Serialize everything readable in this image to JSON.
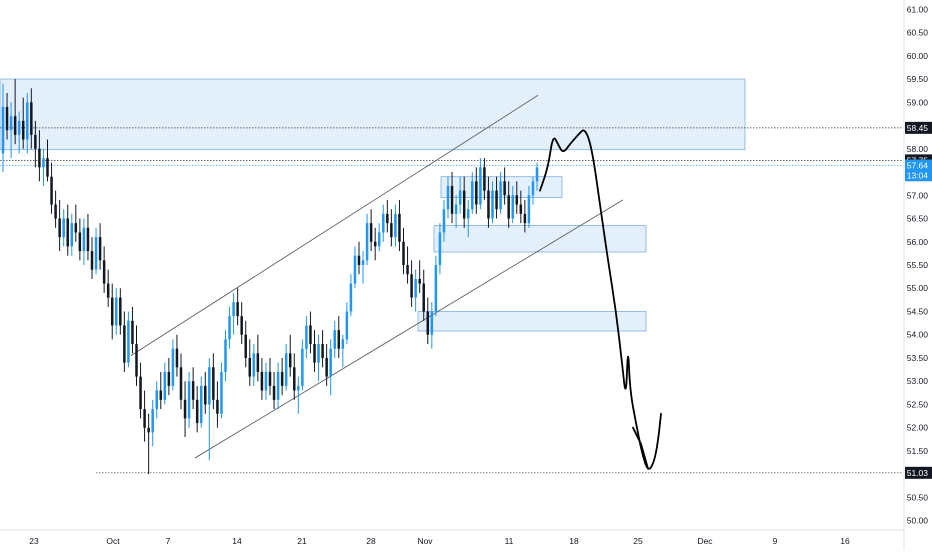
{
  "chart_data": {
    "type": "candlestick",
    "x_ticks": [
      "23",
      "Oct",
      "7",
      "14",
      "21",
      "28",
      "Nov",
      "11",
      "18",
      "25",
      "Dec",
      "9",
      "16"
    ],
    "y_ticks": [
      "61.00",
      "60.50",
      "60.00",
      "59.50",
      "59.00",
      "58.50",
      "58.00",
      "57.50",
      "57.00",
      "56.50",
      "56.00",
      "55.50",
      "55.00",
      "54.50",
      "54.00",
      "53.50",
      "53.00",
      "52.50",
      "52.00",
      "51.50",
      "51.00",
      "50.50",
      "50.00"
    ],
    "ylim": [
      49.8,
      61.2
    ],
    "price_labels": [
      {
        "text": "58.45",
        "value": 58.45,
        "style": "dark"
      },
      {
        "text": "57.75",
        "value": 57.75,
        "style": "dark"
      },
      {
        "text": "57.64",
        "value": 57.64,
        "style": "blue"
      },
      {
        "text": "13:04",
        "value": 57.43,
        "style": "blue"
      },
      {
        "text": "51.03",
        "value": 51.03,
        "style": "dark"
      }
    ],
    "horizontal_levels": [
      58.45,
      57.75,
      57.64,
      51.03
    ],
    "zones": [
      {
        "name": "supply-zone-top",
        "y1": 59.5,
        "y2": 57.98
      },
      {
        "name": "zone-recent-high",
        "y1": 57.4,
        "y2": 56.95
      },
      {
        "name": "zone-mid",
        "y1": 56.35,
        "y2": 55.78
      },
      {
        "name": "zone-low",
        "y1": 54.5,
        "y2": 54.08
      }
    ],
    "channel": {
      "upper": [
        [
          131,
          53.55
        ],
        [
          538,
          59.15
        ]
      ],
      "lower": [
        [
          195,
          51.35
        ],
        [
          623,
          56.9
        ]
      ]
    },
    "candles": [
      {
        "o": 57.9,
        "h": 59.4,
        "l": 57.5,
        "c": 58.9
      },
      {
        "o": 58.9,
        "h": 59.2,
        "l": 58.2,
        "c": 58.4
      },
      {
        "o": 58.4,
        "h": 59.0,
        "l": 57.8,
        "c": 58.7
      },
      {
        "o": 58.7,
        "h": 59.5,
        "l": 58.1,
        "c": 58.3
      },
      {
        "o": 58.3,
        "h": 58.8,
        "l": 57.9,
        "c": 58.6
      },
      {
        "o": 58.6,
        "h": 59.1,
        "l": 58.0,
        "c": 58.2
      },
      {
        "o": 58.2,
        "h": 59.2,
        "l": 57.9,
        "c": 59.0
      },
      {
        "o": 59.0,
        "h": 59.3,
        "l": 58.0,
        "c": 58.3
      },
      {
        "o": 58.3,
        "h": 58.6,
        "l": 57.6,
        "c": 58.0
      },
      {
        "o": 58.0,
        "h": 58.4,
        "l": 57.3,
        "c": 57.6
      },
      {
        "o": 57.6,
        "h": 58.0,
        "l": 57.2,
        "c": 57.8
      },
      {
        "o": 57.8,
        "h": 58.2,
        "l": 57.3,
        "c": 57.4
      },
      {
        "o": 57.4,
        "h": 57.7,
        "l": 56.6,
        "c": 56.8
      },
      {
        "o": 56.8,
        "h": 57.1,
        "l": 56.3,
        "c": 56.5
      },
      {
        "o": 56.5,
        "h": 56.9,
        "l": 55.8,
        "c": 56.1
      },
      {
        "o": 56.1,
        "h": 56.7,
        "l": 55.9,
        "c": 56.5
      },
      {
        "o": 56.5,
        "h": 56.8,
        "l": 55.7,
        "c": 55.9
      },
      {
        "o": 55.9,
        "h": 56.6,
        "l": 55.7,
        "c": 56.4
      },
      {
        "o": 56.4,
        "h": 56.8,
        "l": 56.0,
        "c": 56.2
      },
      {
        "o": 56.2,
        "h": 56.5,
        "l": 55.6,
        "c": 55.8
      },
      {
        "o": 55.8,
        "h": 56.5,
        "l": 55.5,
        "c": 56.3
      },
      {
        "o": 56.3,
        "h": 56.6,
        "l": 55.6,
        "c": 55.8
      },
      {
        "o": 55.8,
        "h": 56.1,
        "l": 55.2,
        "c": 55.4
      },
      {
        "o": 55.4,
        "h": 56.3,
        "l": 55.3,
        "c": 56.1
      },
      {
        "o": 56.1,
        "h": 56.4,
        "l": 55.4,
        "c": 55.6
      },
      {
        "o": 55.6,
        "h": 55.9,
        "l": 54.9,
        "c": 55.1
      },
      {
        "o": 55.1,
        "h": 55.4,
        "l": 54.6,
        "c": 54.8
      },
      {
        "o": 54.8,
        "h": 55.1,
        "l": 53.9,
        "c": 54.2
      },
      {
        "o": 54.2,
        "h": 55.0,
        "l": 54.0,
        "c": 54.8
      },
      {
        "o": 54.8,
        "h": 55.0,
        "l": 54.0,
        "c": 54.2
      },
      {
        "o": 54.2,
        "h": 54.5,
        "l": 53.2,
        "c": 53.4
      },
      {
        "o": 53.4,
        "h": 54.5,
        "l": 53.3,
        "c": 54.3
      },
      {
        "o": 54.3,
        "h": 54.6,
        "l": 53.6,
        "c": 53.8
      },
      {
        "o": 53.8,
        "h": 54.2,
        "l": 52.9,
        "c": 53.1
      },
      {
        "o": 53.1,
        "h": 53.4,
        "l": 52.2,
        "c": 52.4
      },
      {
        "o": 52.4,
        "h": 52.8,
        "l": 51.7,
        "c": 52.0
      },
      {
        "o": 52.0,
        "h": 52.3,
        "l": 51.0,
        "c": 51.9
      },
      {
        "o": 51.9,
        "h": 52.6,
        "l": 51.6,
        "c": 52.4
      },
      {
        "o": 52.4,
        "h": 53.0,
        "l": 52.2,
        "c": 52.8
      },
      {
        "o": 52.8,
        "h": 53.2,
        "l": 52.4,
        "c": 52.6
      },
      {
        "o": 52.6,
        "h": 53.4,
        "l": 52.5,
        "c": 53.2
      },
      {
        "o": 53.2,
        "h": 53.5,
        "l": 52.7,
        "c": 52.9
      },
      {
        "o": 52.9,
        "h": 53.9,
        "l": 52.8,
        "c": 53.7
      },
      {
        "o": 53.7,
        "h": 54.0,
        "l": 53.1,
        "c": 53.3
      },
      {
        "o": 53.3,
        "h": 53.6,
        "l": 52.4,
        "c": 52.6
      },
      {
        "o": 52.6,
        "h": 53.0,
        "l": 51.8,
        "c": 52.2
      },
      {
        "o": 52.2,
        "h": 53.2,
        "l": 52.0,
        "c": 53.0
      },
      {
        "o": 53.0,
        "h": 53.3,
        "l": 52.4,
        "c": 52.6
      },
      {
        "o": 52.6,
        "h": 52.9,
        "l": 51.9,
        "c": 52.1
      },
      {
        "o": 52.1,
        "h": 53.1,
        "l": 52.0,
        "c": 52.9
      },
      {
        "o": 52.9,
        "h": 53.2,
        "l": 52.3,
        "c": 52.5
      },
      {
        "o": 52.5,
        "h": 53.5,
        "l": 51.3,
        "c": 53.3
      },
      {
        "o": 53.3,
        "h": 53.6,
        "l": 52.4,
        "c": 52.6
      },
      {
        "o": 52.6,
        "h": 53.0,
        "l": 52.0,
        "c": 52.3
      },
      {
        "o": 52.3,
        "h": 53.4,
        "l": 52.2,
        "c": 53.2
      },
      {
        "o": 53.2,
        "h": 54.1,
        "l": 53.0,
        "c": 53.9
      },
      {
        "o": 53.9,
        "h": 54.6,
        "l": 53.7,
        "c": 54.4
      },
      {
        "o": 54.4,
        "h": 54.9,
        "l": 54.0,
        "c": 54.7
      },
      {
        "o": 54.7,
        "h": 55.0,
        "l": 54.2,
        "c": 54.4
      },
      {
        "o": 54.4,
        "h": 54.7,
        "l": 53.8,
        "c": 54.0
      },
      {
        "o": 54.0,
        "h": 54.3,
        "l": 53.3,
        "c": 53.5
      },
      {
        "o": 53.5,
        "h": 53.9,
        "l": 52.9,
        "c": 53.1
      },
      {
        "o": 53.1,
        "h": 53.8,
        "l": 52.9,
        "c": 53.6
      },
      {
        "o": 53.6,
        "h": 54.0,
        "l": 53.0,
        "c": 53.2
      },
      {
        "o": 53.2,
        "h": 53.5,
        "l": 52.6,
        "c": 52.8
      },
      {
        "o": 52.8,
        "h": 53.4,
        "l": 52.6,
        "c": 53.2
      },
      {
        "o": 53.2,
        "h": 53.5,
        "l": 52.7,
        "c": 52.9
      },
      {
        "o": 52.9,
        "h": 53.2,
        "l": 52.4,
        "c": 52.6
      },
      {
        "o": 52.6,
        "h": 53.4,
        "l": 52.4,
        "c": 53.2
      },
      {
        "o": 53.2,
        "h": 53.5,
        "l": 52.7,
        "c": 52.9
      },
      {
        "o": 52.9,
        "h": 53.8,
        "l": 52.8,
        "c": 53.6
      },
      {
        "o": 53.6,
        "h": 54.0,
        "l": 53.1,
        "c": 53.3
      },
      {
        "o": 53.3,
        "h": 53.6,
        "l": 52.6,
        "c": 52.8
      },
      {
        "o": 52.8,
        "h": 53.1,
        "l": 52.3,
        "c": 52.9
      },
      {
        "o": 52.9,
        "h": 53.9,
        "l": 52.8,
        "c": 53.7
      },
      {
        "o": 53.7,
        "h": 54.4,
        "l": 53.5,
        "c": 54.2
      },
      {
        "o": 54.2,
        "h": 54.5,
        "l": 53.6,
        "c": 53.8
      },
      {
        "o": 53.8,
        "h": 54.1,
        "l": 53.2,
        "c": 53.4
      },
      {
        "o": 53.4,
        "h": 54.0,
        "l": 53.0,
        "c": 53.8
      },
      {
        "o": 53.8,
        "h": 54.1,
        "l": 53.3,
        "c": 53.5
      },
      {
        "o": 53.5,
        "h": 53.8,
        "l": 52.9,
        "c": 53.1
      },
      {
        "o": 53.1,
        "h": 53.9,
        "l": 52.7,
        "c": 53.7
      },
      {
        "o": 53.7,
        "h": 54.3,
        "l": 53.5,
        "c": 54.1
      },
      {
        "o": 54.1,
        "h": 54.4,
        "l": 53.5,
        "c": 53.7
      },
      {
        "o": 53.7,
        "h": 54.0,
        "l": 53.3,
        "c": 53.9
      },
      {
        "o": 53.9,
        "h": 54.7,
        "l": 53.8,
        "c": 54.5
      },
      {
        "o": 54.5,
        "h": 55.3,
        "l": 54.4,
        "c": 55.1
      },
      {
        "o": 55.1,
        "h": 55.9,
        "l": 55.0,
        "c": 55.7
      },
      {
        "o": 55.7,
        "h": 56.0,
        "l": 55.3,
        "c": 55.5
      },
      {
        "o": 55.5,
        "h": 55.8,
        "l": 55.1,
        "c": 55.6
      },
      {
        "o": 55.6,
        "h": 56.6,
        "l": 55.5,
        "c": 56.4
      },
      {
        "o": 56.4,
        "h": 56.7,
        "l": 55.8,
        "c": 56.0
      },
      {
        "o": 56.0,
        "h": 56.3,
        "l": 55.6,
        "c": 55.9
      },
      {
        "o": 55.9,
        "h": 56.4,
        "l": 55.8,
        "c": 56.2
      },
      {
        "o": 56.2,
        "h": 56.8,
        "l": 56.0,
        "c": 56.6
      },
      {
        "o": 56.6,
        "h": 56.9,
        "l": 56.2,
        "c": 56.4
      },
      {
        "o": 56.4,
        "h": 56.7,
        "l": 55.9,
        "c": 56.1
      },
      {
        "o": 56.1,
        "h": 56.8,
        "l": 55.9,
        "c": 56.6
      },
      {
        "o": 56.6,
        "h": 56.9,
        "l": 55.8,
        "c": 56.0
      },
      {
        "o": 56.0,
        "h": 56.3,
        "l": 55.3,
        "c": 55.5
      },
      {
        "o": 55.5,
        "h": 55.9,
        "l": 55.1,
        "c": 55.3
      },
      {
        "o": 55.3,
        "h": 55.6,
        "l": 54.6,
        "c": 54.8
      },
      {
        "o": 54.8,
        "h": 55.4,
        "l": 54.5,
        "c": 55.2
      },
      {
        "o": 55.2,
        "h": 55.6,
        "l": 54.9,
        "c": 55.1
      },
      {
        "o": 55.1,
        "h": 55.4,
        "l": 54.3,
        "c": 54.5
      },
      {
        "o": 54.5,
        "h": 54.8,
        "l": 53.8,
        "c": 54.0
      },
      {
        "o": 54.0,
        "h": 54.7,
        "l": 53.7,
        "c": 54.5
      },
      {
        "o": 54.5,
        "h": 55.7,
        "l": 54.4,
        "c": 55.5
      },
      {
        "o": 55.5,
        "h": 56.4,
        "l": 55.3,
        "c": 56.2
      },
      {
        "o": 56.2,
        "h": 56.9,
        "l": 56.0,
        "c": 56.7
      },
      {
        "o": 56.7,
        "h": 57.4,
        "l": 56.5,
        "c": 57.2
      },
      {
        "o": 57.2,
        "h": 57.5,
        "l": 56.4,
        "c": 56.6
      },
      {
        "o": 56.6,
        "h": 57.0,
        "l": 56.3,
        "c": 56.8
      },
      {
        "o": 56.8,
        "h": 57.4,
        "l": 56.6,
        "c": 57.1
      },
      {
        "o": 57.1,
        "h": 57.4,
        "l": 56.3,
        "c": 56.5
      },
      {
        "o": 56.5,
        "h": 56.9,
        "l": 56.1,
        "c": 56.7
      },
      {
        "o": 56.7,
        "h": 57.5,
        "l": 56.6,
        "c": 57.3
      },
      {
        "o": 57.3,
        "h": 57.6,
        "l": 56.6,
        "c": 56.8
      },
      {
        "o": 56.8,
        "h": 57.8,
        "l": 56.7,
        "c": 57.6
      },
      {
        "o": 57.6,
        "h": 57.8,
        "l": 56.9,
        "c": 57.1
      },
      {
        "o": 57.1,
        "h": 57.4,
        "l": 56.3,
        "c": 56.5
      },
      {
        "o": 56.5,
        "h": 57.3,
        "l": 56.4,
        "c": 57.1
      },
      {
        "o": 57.1,
        "h": 57.4,
        "l": 56.5,
        "c": 56.7
      },
      {
        "o": 56.7,
        "h": 57.5,
        "l": 56.6,
        "c": 57.3
      },
      {
        "o": 57.3,
        "h": 57.6,
        "l": 56.8,
        "c": 57.0
      },
      {
        "o": 57.0,
        "h": 57.3,
        "l": 56.3,
        "c": 56.5
      },
      {
        "o": 56.5,
        "h": 57.2,
        "l": 56.4,
        "c": 57.0
      },
      {
        "o": 57.0,
        "h": 57.3,
        "l": 56.6,
        "c": 56.8
      },
      {
        "o": 56.8,
        "h": 57.1,
        "l": 56.4,
        "c": 56.6
      },
      {
        "o": 56.6,
        "h": 56.9,
        "l": 56.2,
        "c": 56.4
      },
      {
        "o": 56.4,
        "h": 57.2,
        "l": 56.3,
        "c": 57.0
      },
      {
        "o": 57.0,
        "h": 57.4,
        "l": 56.8,
        "c": 57.3
      },
      {
        "o": 57.3,
        "h": 57.7,
        "l": 57.1,
        "c": 57.6
      }
    ],
    "forecast_path": [
      [
        540,
        57.1
      ],
      [
        548,
        57.6
      ],
      [
        553,
        58.3
      ],
      [
        558,
        58.1
      ],
      [
        563,
        57.9
      ],
      [
        570,
        58.1
      ],
      [
        578,
        58.3
      ],
      [
        585,
        58.45
      ],
      [
        592,
        58.0
      ],
      [
        600,
        56.8
      ],
      [
        608,
        55.6
      ],
      [
        616,
        54.5
      ],
      [
        622,
        53.4
      ],
      [
        626,
        52.6
      ],
      [
        628,
        53.8
      ],
      [
        630,
        52.8
      ],
      [
        636,
        52.1
      ],
      [
        642,
        51.45
      ],
      [
        648,
        51.05
      ],
      [
        654,
        51.25
      ],
      [
        658,
        51.7
      ],
      [
        661,
        52.3
      ]
    ],
    "forecast_arrow_head": [
      [
        633,
        52.0
      ],
      [
        641,
        51.65
      ],
      [
        648,
        51.12
      ]
    ],
    "colors": {
      "up": "#2196f3",
      "down": "#131722",
      "zone_fill": "#e3effb",
      "zone_stroke": "#7fb1e3",
      "grid_line": "#131722",
      "label_dark": "#131722",
      "label_blue": "#2196f3",
      "axis_text": "#131722"
    }
  }
}
